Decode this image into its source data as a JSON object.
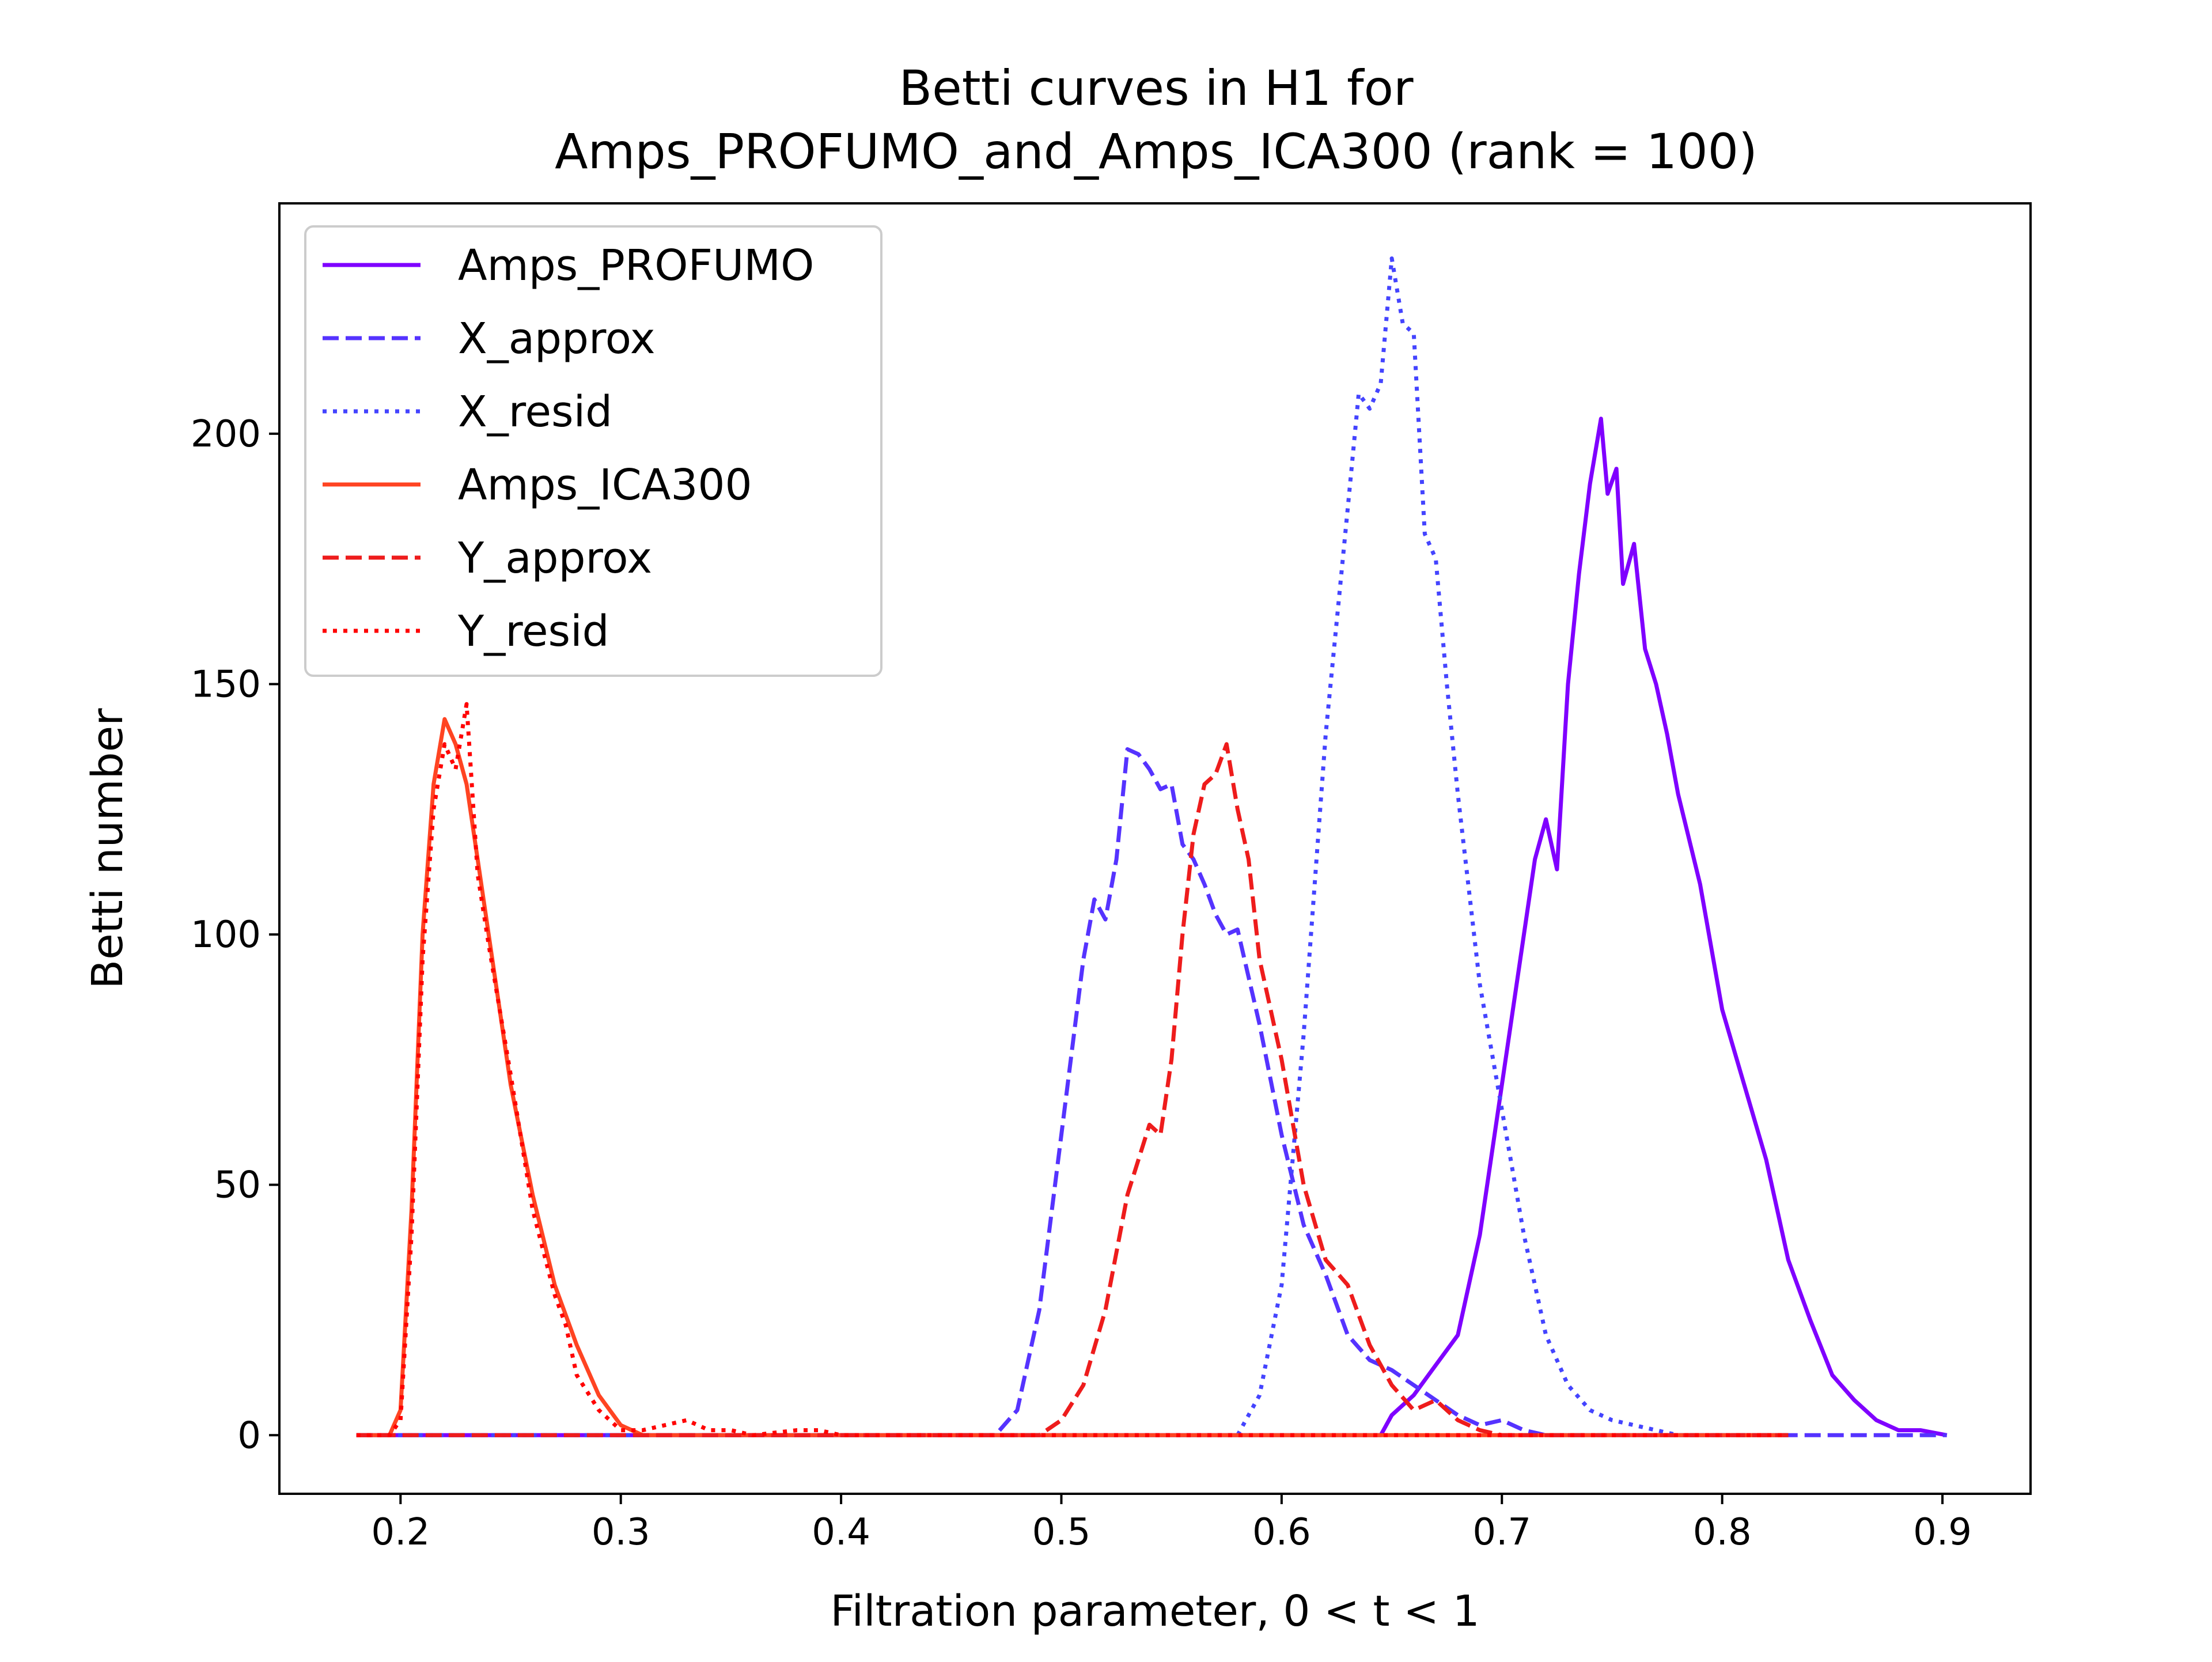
{
  "chart_data": {
    "type": "line",
    "title_line1": "Betti curves in H1 for",
    "title_line2": "Amps_PROFUMO_and_Amps_ICA300 (rank = 100)",
    "xlabel": "Filtration parameter, 0 < t < 1",
    "ylabel": "Betti number",
    "xlim": [
      0.145,
      0.94
    ],
    "ylim": [
      -11.7,
      246
    ],
    "xticks": [
      0.2,
      0.3,
      0.4,
      0.5,
      0.6,
      0.7,
      0.8,
      0.9
    ],
    "xtick_labels": [
      "0.2",
      "0.3",
      "0.4",
      "0.5",
      "0.6",
      "0.7",
      "0.8",
      "0.9"
    ],
    "yticks": [
      0,
      50,
      100,
      150,
      200
    ],
    "ytick_labels": [
      "0",
      "50",
      "100",
      "150",
      "200"
    ],
    "grid": false,
    "legend_position": "upper-left",
    "series": [
      {
        "name": "Amps_PROFUMO",
        "color": "#7f00ff",
        "style": "solid",
        "points": [
          [
            0.18,
            0
          ],
          [
            0.645,
            0
          ],
          [
            0.65,
            4
          ],
          [
            0.66,
            8
          ],
          [
            0.67,
            14
          ],
          [
            0.68,
            20
          ],
          [
            0.69,
            40
          ],
          [
            0.7,
            70
          ],
          [
            0.71,
            100
          ],
          [
            0.715,
            115
          ],
          [
            0.72,
            123
          ],
          [
            0.725,
            113
          ],
          [
            0.73,
            150
          ],
          [
            0.735,
            172
          ],
          [
            0.74,
            190
          ],
          [
            0.745,
            203
          ],
          [
            0.748,
            188
          ],
          [
            0.752,
            193
          ],
          [
            0.755,
            170
          ],
          [
            0.76,
            178
          ],
          [
            0.765,
            157
          ],
          [
            0.77,
            150
          ],
          [
            0.775,
            140
          ],
          [
            0.78,
            128
          ],
          [
            0.79,
            110
          ],
          [
            0.8,
            85
          ],
          [
            0.81,
            70
          ],
          [
            0.82,
            55
          ],
          [
            0.83,
            35
          ],
          [
            0.84,
            23
          ],
          [
            0.85,
            12
          ],
          [
            0.86,
            7
          ],
          [
            0.87,
            3
          ],
          [
            0.88,
            1
          ],
          [
            0.89,
            1
          ],
          [
            0.902,
            0
          ]
        ]
      },
      {
        "name": "X_approx",
        "color": "#5533ff",
        "style": "dashed",
        "points": [
          [
            0.18,
            0
          ],
          [
            0.47,
            0
          ],
          [
            0.48,
            5
          ],
          [
            0.49,
            25
          ],
          [
            0.5,
            60
          ],
          [
            0.51,
            95
          ],
          [
            0.515,
            107
          ],
          [
            0.52,
            103
          ],
          [
            0.525,
            115
          ],
          [
            0.53,
            137
          ],
          [
            0.535,
            136
          ],
          [
            0.54,
            133
          ],
          [
            0.545,
            129
          ],
          [
            0.55,
            130
          ],
          [
            0.555,
            118
          ],
          [
            0.56,
            115
          ],
          [
            0.565,
            110
          ],
          [
            0.57,
            104
          ],
          [
            0.575,
            100
          ],
          [
            0.58,
            101
          ],
          [
            0.59,
            82
          ],
          [
            0.6,
            60
          ],
          [
            0.61,
            42
          ],
          [
            0.62,
            32
          ],
          [
            0.63,
            20
          ],
          [
            0.64,
            15
          ],
          [
            0.65,
            13
          ],
          [
            0.66,
            10
          ],
          [
            0.67,
            7
          ],
          [
            0.68,
            4
          ],
          [
            0.69,
            2
          ],
          [
            0.7,
            3
          ],
          [
            0.71,
            1
          ],
          [
            0.72,
            0
          ],
          [
            0.902,
            0
          ]
        ]
      },
      {
        "name": "X_resid",
        "color": "#4444ff",
        "style": "dotted",
        "points": [
          [
            0.18,
            0
          ],
          [
            0.58,
            0
          ],
          [
            0.59,
            8
          ],
          [
            0.6,
            30
          ],
          [
            0.61,
            80
          ],
          [
            0.62,
            140
          ],
          [
            0.63,
            185
          ],
          [
            0.635,
            208
          ],
          [
            0.64,
            205
          ],
          [
            0.645,
            210
          ],
          [
            0.65,
            235
          ],
          [
            0.655,
            222
          ],
          [
            0.66,
            220
          ],
          [
            0.665,
            180
          ],
          [
            0.67,
            175
          ],
          [
            0.675,
            150
          ],
          [
            0.68,
            128
          ],
          [
            0.69,
            90
          ],
          [
            0.7,
            65
          ],
          [
            0.71,
            40
          ],
          [
            0.72,
            20
          ],
          [
            0.73,
            10
          ],
          [
            0.74,
            5
          ],
          [
            0.75,
            3
          ],
          [
            0.76,
            2
          ],
          [
            0.77,
            1
          ],
          [
            0.78,
            0
          ],
          [
            0.83,
            0
          ]
        ]
      },
      {
        "name": "Amps_ICA300",
        "color": "#ff4422",
        "style": "solid",
        "points": [
          [
            0.18,
            0
          ],
          [
            0.195,
            0
          ],
          [
            0.2,
            5
          ],
          [
            0.205,
            45
          ],
          [
            0.21,
            100
          ],
          [
            0.215,
            130
          ],
          [
            0.22,
            143
          ],
          [
            0.225,
            138
          ],
          [
            0.23,
            130
          ],
          [
            0.235,
            115
          ],
          [
            0.24,
            100
          ],
          [
            0.25,
            70
          ],
          [
            0.26,
            48
          ],
          [
            0.27,
            30
          ],
          [
            0.28,
            18
          ],
          [
            0.29,
            8
          ],
          [
            0.3,
            2
          ],
          [
            0.31,
            0
          ],
          [
            0.83,
            0
          ]
        ]
      },
      {
        "name": "Y_approx",
        "color": "#ee1c1c",
        "style": "dashed",
        "points": [
          [
            0.18,
            0
          ],
          [
            0.49,
            0
          ],
          [
            0.5,
            3
          ],
          [
            0.51,
            10
          ],
          [
            0.52,
            25
          ],
          [
            0.53,
            48
          ],
          [
            0.54,
            62
          ],
          [
            0.545,
            60
          ],
          [
            0.55,
            75
          ],
          [
            0.555,
            100
          ],
          [
            0.56,
            120
          ],
          [
            0.565,
            130
          ],
          [
            0.57,
            132
          ],
          [
            0.575,
            138
          ],
          [
            0.58,
            125
          ],
          [
            0.585,
            115
          ],
          [
            0.59,
            95
          ],
          [
            0.6,
            75
          ],
          [
            0.61,
            50
          ],
          [
            0.62,
            35
          ],
          [
            0.63,
            30
          ],
          [
            0.64,
            18
          ],
          [
            0.65,
            10
          ],
          [
            0.66,
            5
          ],
          [
            0.67,
            7
          ],
          [
            0.68,
            3
          ],
          [
            0.69,
            1
          ],
          [
            0.7,
            0
          ],
          [
            0.83,
            0
          ]
        ]
      },
      {
        "name": "Y_resid",
        "color": "#ff0000",
        "style": "dotted",
        "points": [
          [
            0.18,
            0
          ],
          [
            0.195,
            0
          ],
          [
            0.2,
            3
          ],
          [
            0.205,
            40
          ],
          [
            0.21,
            95
          ],
          [
            0.215,
            125
          ],
          [
            0.22,
            138
          ],
          [
            0.225,
            133
          ],
          [
            0.23,
            146
          ],
          [
            0.235,
            112
          ],
          [
            0.24,
            98
          ],
          [
            0.25,
            72
          ],
          [
            0.26,
            45
          ],
          [
            0.27,
            28
          ],
          [
            0.275,
            22
          ],
          [
            0.28,
            12
          ],
          [
            0.29,
            5
          ],
          [
            0.3,
            1
          ],
          [
            0.31,
            1
          ],
          [
            0.32,
            2
          ],
          [
            0.33,
            3
          ],
          [
            0.34,
            1
          ],
          [
            0.35,
            1
          ],
          [
            0.36,
            0
          ],
          [
            0.38,
            1
          ],
          [
            0.39,
            1
          ],
          [
            0.4,
            0
          ],
          [
            0.83,
            0
          ]
        ]
      }
    ]
  }
}
